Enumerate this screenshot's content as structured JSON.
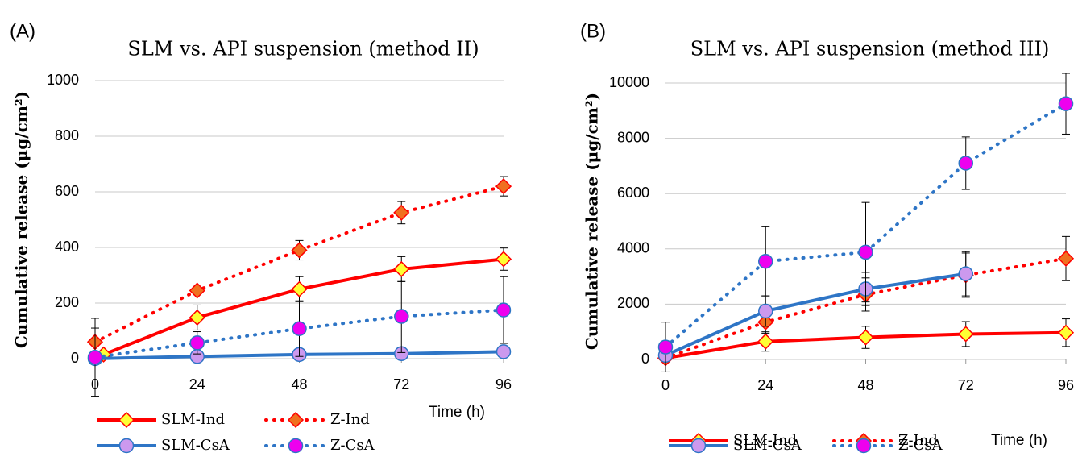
{
  "chart_data": [
    {
      "type": "line",
      "panel": "(A)",
      "title": "SLM vs. API suspension (method II)",
      "ylabel": "Cumulative release (μg/cm²)",
      "xlabel": "Time (h)",
      "xlim": [
        0,
        96
      ],
      "xticks": [
        0,
        24,
        48,
        72,
        96
      ],
      "ylim": [
        0,
        1000
      ],
      "yticks": [
        0,
        200,
        400,
        600,
        800,
        1000
      ],
      "grid": true,
      "series": [
        {
          "name": "SLM-Ind",
          "color": "#ff0000",
          "style": "solid",
          "marker": "diamond",
          "marker_color": "#ffff33",
          "x": [
            2,
            24,
            48,
            72,
            96
          ],
          "values": [
            15,
            148,
            250,
            322,
            358
          ],
          "errors": [
            10,
            45,
            45,
            45,
            40
          ]
        },
        {
          "name": "Z-Ind",
          "color": "#ff0000",
          "style": "dotted",
          "marker": "diamond",
          "marker_color": "#f07020",
          "x": [
            0,
            24,
            48,
            72,
            96
          ],
          "values": [
            60,
            245,
            390,
            525,
            620
          ],
          "errors": [
            50,
            15,
            35,
            40,
            35
          ]
        },
        {
          "name": "SLM-CsA",
          "color": "#2e75c6",
          "style": "solid",
          "marker": "circle",
          "marker_color": "#cc99ee",
          "x": [
            0,
            24,
            48,
            72,
            96
          ],
          "values": [
            0,
            8,
            15,
            18,
            25
          ],
          "errors": [
            5,
            5,
            5,
            5,
            5
          ]
        },
        {
          "name": "Z-CsA",
          "color": "#2e75c6",
          "style": "dotted",
          "marker": "circle",
          "marker_color": "#ee00ee",
          "x": [
            0,
            24,
            48,
            72,
            96
          ],
          "values": [
            5,
            57,
            108,
            152,
            175
          ],
          "errors": [
            140,
            40,
            100,
            130,
            120
          ]
        }
      ]
    },
    {
      "type": "line",
      "panel": "(B)",
      "title": "SLM vs. API suspension (method III)",
      "ylabel": "Cumulative release (μg/cm²)",
      "xlabel": "Time (h)",
      "xlim": [
        0,
        96
      ],
      "xticks": [
        0,
        24,
        48,
        72,
        96
      ],
      "ylim": [
        0,
        10000
      ],
      "yticks": [
        0,
        2000,
        4000,
        6000,
        8000,
        10000
      ],
      "grid": true,
      "series": [
        {
          "name": "SLM-Ind",
          "color": "#ff0000",
          "style": "solid",
          "marker": "diamond",
          "marker_color": "#ffff33",
          "x": [
            0,
            24,
            48,
            72,
            96
          ],
          "values": [
            50,
            650,
            800,
            920,
            970
          ],
          "errors": [
            50,
            350,
            400,
            450,
            500
          ]
        },
        {
          "name": "Z-Ind",
          "color": "#ff0000",
          "style": "dotted",
          "marker": "diamond",
          "marker_color": "#f07020",
          "x": [
            0,
            24,
            48,
            72,
            96
          ],
          "values": [
            50,
            1350,
            2350,
            3050,
            3650
          ],
          "errors": [
            50,
            400,
            600,
            800,
            800
          ]
        },
        {
          "name": "SLM-CsA",
          "color": "#2e75c6",
          "style": "solid",
          "marker": "circle",
          "marker_color": "#cc99ee",
          "x": [
            0,
            24,
            48,
            72
          ],
          "values": [
            150,
            1750,
            2550,
            3100
          ],
          "errors": [
            150,
            550,
            600,
            800
          ]
        },
        {
          "name": "Z-CsA",
          "color": "#2e75c6",
          "style": "dotted",
          "marker": "circle",
          "marker_color": "#ee00ee",
          "x": [
            0,
            24,
            48,
            72,
            96
          ],
          "values": [
            450,
            3550,
            3880,
            7100,
            9250
          ],
          "errors": [
            900,
            1250,
            1800,
            950,
            1100
          ]
        }
      ]
    }
  ]
}
